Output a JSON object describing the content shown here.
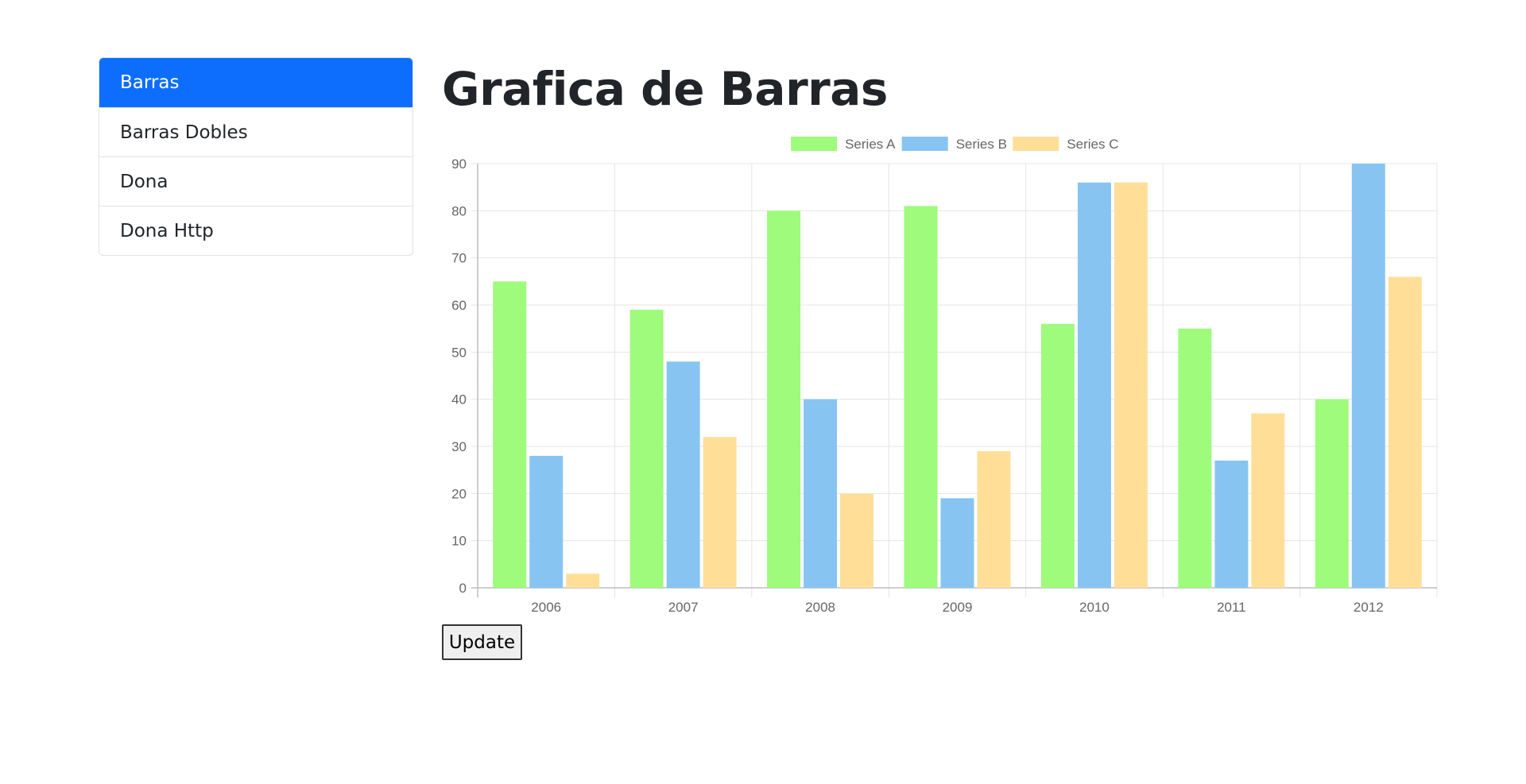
{
  "sidebar": {
    "items": [
      {
        "label": "Barras",
        "active": true
      },
      {
        "label": "Barras Dobles",
        "active": false
      },
      {
        "label": "Dona",
        "active": false
      },
      {
        "label": "Dona Http",
        "active": false
      }
    ]
  },
  "main": {
    "title": "Grafica de Barras",
    "update_label": "Update"
  },
  "colors": {
    "accent": "#0d6efd",
    "series_a": "#9efb7c",
    "series_b": "#87c4f2",
    "series_c": "#ffdf98"
  },
  "chart_data": {
    "type": "bar",
    "categories": [
      "2006",
      "2007",
      "2008",
      "2009",
      "2010",
      "2011",
      "2012"
    ],
    "series": [
      {
        "name": "Series A",
        "values": [
          65,
          59,
          80,
          81,
          56,
          55,
          40
        ]
      },
      {
        "name": "Series B",
        "values": [
          28,
          48,
          40,
          19,
          86,
          27,
          90
        ]
      },
      {
        "name": "Series C",
        "values": [
          3,
          32,
          20,
          29,
          86,
          37,
          66
        ]
      }
    ],
    "ylim": [
      0,
      90
    ],
    "yticks": [
      0,
      10,
      20,
      30,
      40,
      50,
      60,
      70,
      80,
      90
    ],
    "grid": true,
    "legend": "top-center"
  }
}
